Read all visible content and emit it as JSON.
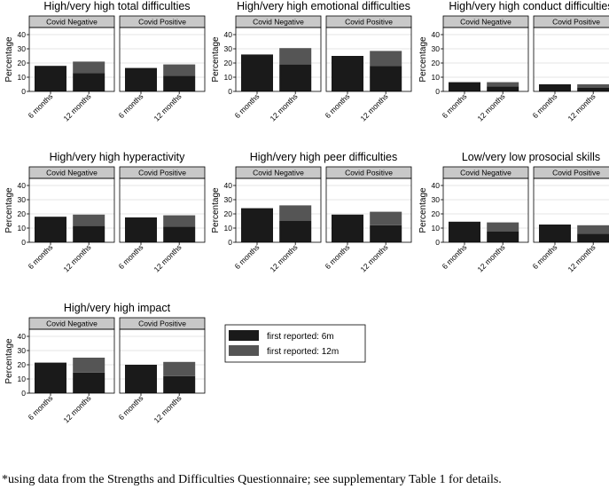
{
  "footnote": "*using data from the Strengths and Difficulties Questionnaire; see supplementary Table 1 for details.",
  "colors": {
    "first_6m": "#1a1a1a",
    "first_12m": "#555555",
    "strip": "#c8c8c8",
    "grid": "#dcdcdc",
    "frame": "#000000"
  },
  "chart_data": [
    {
      "type": "bar",
      "stacked": true,
      "title": "High/very high total difficulties",
      "ylabel": "Percentage",
      "ylim": [
        0,
        45
      ],
      "yticks": [
        0,
        10,
        20,
        30,
        40
      ],
      "grid": true,
      "categories": [
        "6 months",
        "12 months"
      ],
      "panels": [
        {
          "label": "Covid Negative",
          "series": [
            {
              "name": "first reported: 6m",
              "values": [
                18,
                13
              ]
            },
            {
              "name": "first reported: 12m",
              "values": [
                0,
                8
              ]
            }
          ]
        },
        {
          "label": "Covid Positive",
          "series": [
            {
              "name": "first reported: 6m",
              "values": [
                16.5,
                11
              ]
            },
            {
              "name": "first reported: 12m",
              "values": [
                0,
                8
              ]
            }
          ]
        }
      ]
    },
    {
      "type": "bar",
      "stacked": true,
      "title": "High/very high emotional difficulties",
      "ylabel": "Percentage",
      "ylim": [
        0,
        45
      ],
      "yticks": [
        0,
        10,
        20,
        30,
        40
      ],
      "grid": true,
      "categories": [
        "6 months",
        "12 months"
      ],
      "panels": [
        {
          "label": "Covid Negative",
          "series": [
            {
              "name": "first reported: 6m",
              "values": [
                26,
                19
              ]
            },
            {
              "name": "first reported: 12m",
              "values": [
                0,
                11.5
              ]
            }
          ]
        },
        {
          "label": "Covid Positive",
          "series": [
            {
              "name": "first reported: 6m",
              "values": [
                25,
                18
              ]
            },
            {
              "name": "first reported: 12m",
              "values": [
                0,
                10.5
              ]
            }
          ]
        }
      ]
    },
    {
      "type": "bar",
      "stacked": true,
      "title": "High/very high conduct difficulties",
      "ylabel": "Percentage",
      "ylim": [
        0,
        45
      ],
      "yticks": [
        0,
        10,
        20,
        30,
        40
      ],
      "grid": true,
      "categories": [
        "6 months",
        "12 months"
      ],
      "panels": [
        {
          "label": "Covid Negative",
          "series": [
            {
              "name": "first reported: 6m",
              "values": [
                6.5,
                3.5
              ]
            },
            {
              "name": "first reported: 12m",
              "values": [
                0,
                3
              ]
            }
          ]
        },
        {
          "label": "Covid Positive",
          "series": [
            {
              "name": "first reported: 6m",
              "values": [
                5,
                2.5
              ]
            },
            {
              "name": "first reported: 12m",
              "values": [
                0,
                2.5
              ]
            }
          ]
        }
      ]
    },
    {
      "type": "bar",
      "stacked": true,
      "title": "High/very high hyperactivity",
      "ylabel": "Percentage",
      "ylim": [
        0,
        45
      ],
      "yticks": [
        0,
        10,
        20,
        30,
        40
      ],
      "grid": true,
      "categories": [
        "6 months",
        "12 months"
      ],
      "panels": [
        {
          "label": "Covid Negative",
          "series": [
            {
              "name": "first reported: 6m",
              "values": [
                18,
                11.5
              ]
            },
            {
              "name": "first reported: 12m",
              "values": [
                0,
                8
              ]
            }
          ]
        },
        {
          "label": "Covid Positive",
          "series": [
            {
              "name": "first reported: 6m",
              "values": [
                17.5,
                11
              ]
            },
            {
              "name": "first reported: 12m",
              "values": [
                0,
                8
              ]
            }
          ]
        }
      ]
    },
    {
      "type": "bar",
      "stacked": true,
      "title": "High/very high peer difficulties",
      "ylabel": "Percentage",
      "ylim": [
        0,
        45
      ],
      "yticks": [
        0,
        10,
        20,
        30,
        40
      ],
      "grid": true,
      "categories": [
        "6 months",
        "12 months"
      ],
      "panels": [
        {
          "label": "Covid Negative",
          "series": [
            {
              "name": "first reported: 6m",
              "values": [
                24,
                15
              ]
            },
            {
              "name": "first reported: 12m",
              "values": [
                0,
                11
              ]
            }
          ]
        },
        {
          "label": "Covid Positive",
          "series": [
            {
              "name": "first reported: 6m",
              "values": [
                19.5,
                12
              ]
            },
            {
              "name": "first reported: 12m",
              "values": [
                0,
                9.5
              ]
            }
          ]
        }
      ]
    },
    {
      "type": "bar",
      "stacked": true,
      "title": "Low/very low prosocial skills",
      "ylabel": "Percentage",
      "ylim": [
        0,
        45
      ],
      "yticks": [
        0,
        10,
        20,
        30,
        40
      ],
      "grid": true,
      "categories": [
        "6 months",
        "12 months"
      ],
      "panels": [
        {
          "label": "Covid Negative",
          "series": [
            {
              "name": "first reported: 6m",
              "values": [
                14.5,
                7.5
              ]
            },
            {
              "name": "first reported: 12m",
              "values": [
                0,
                6.5
              ]
            }
          ]
        },
        {
          "label": "Covid Positive",
          "series": [
            {
              "name": "first reported: 6m",
              "values": [
                12.5,
                6
              ]
            },
            {
              "name": "first reported: 12m",
              "values": [
                0,
                6
              ]
            }
          ]
        }
      ]
    },
    {
      "type": "bar",
      "stacked": true,
      "title": "High/very high impact",
      "ylabel": "Percentage",
      "ylim": [
        0,
        45
      ],
      "yticks": [
        0,
        10,
        20,
        30,
        40
      ],
      "grid": true,
      "categories": [
        "6 months",
        "12 months"
      ],
      "panels": [
        {
          "label": "Covid Negative",
          "series": [
            {
              "name": "first reported: 6m",
              "values": [
                21.5,
                14.5
              ]
            },
            {
              "name": "first reported: 12m",
              "values": [
                0,
                10.5
              ]
            }
          ]
        },
        {
          "label": "Covid Positive",
          "series": [
            {
              "name": "first reported: 6m",
              "values": [
                20,
                12
              ]
            },
            {
              "name": "first reported: 12m",
              "values": [
                0,
                10
              ]
            }
          ]
        }
      ]
    }
  ],
  "legend": {
    "placement": "bottom-center",
    "items": [
      {
        "label": "first reported: 6m",
        "color": "#1a1a1a"
      },
      {
        "label": "first reported: 12m",
        "color": "#555555"
      }
    ]
  }
}
